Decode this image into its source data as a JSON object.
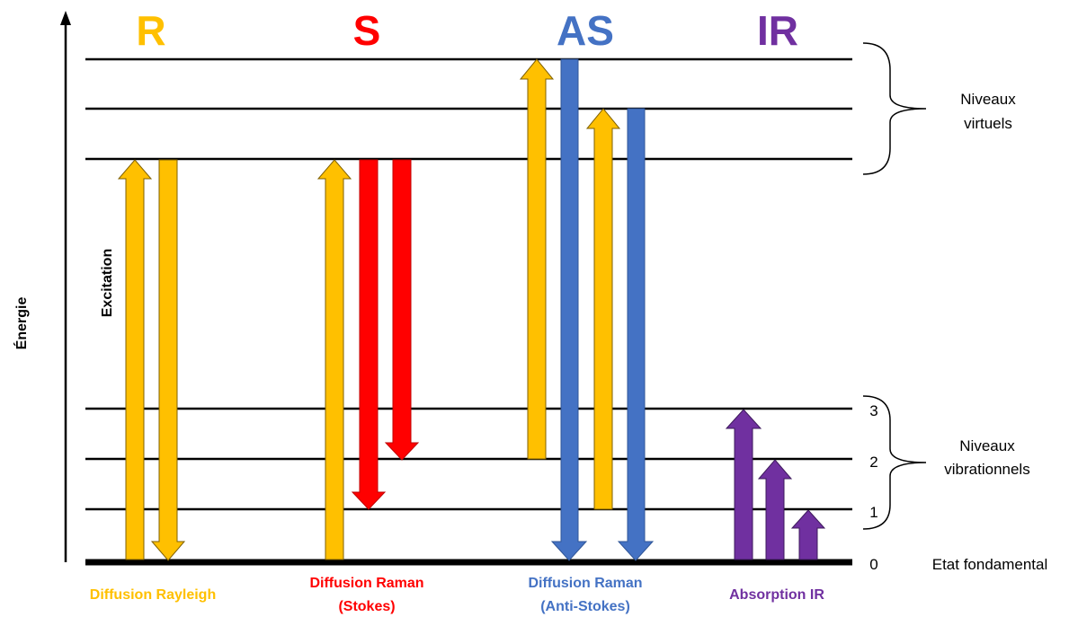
{
  "colors": {
    "rayleigh": "#FFC000",
    "stokes": "#FF0000",
    "anti_stokes": "#4472C4",
    "ir": "#7030A0",
    "line": "#000000"
  },
  "titles": {
    "rayleigh": "R",
    "stokes": "S",
    "anti_stokes": "AS",
    "ir": "IR"
  },
  "captions": {
    "rayleigh": "Diffusion Rayleigh",
    "stokes_line1": "Diffusion Raman",
    "stokes_line2": "(Stokes)",
    "anti_stokes_line1": "Diffusion Raman",
    "anti_stokes_line2": "(Anti-Stokes)",
    "ir": "Absorption IR"
  },
  "axis": {
    "label": "Énergie",
    "excitation": "Excitation"
  },
  "groups": {
    "virtual_line1": "Niveaux",
    "virtual_line2": "virtuels",
    "vibrational_line1": "Niveaux",
    "vibrational_line2": "vibrationnels",
    "ground": "Etat fondamental"
  },
  "level_numbers": [
    "0",
    "1",
    "2",
    "3"
  ],
  "icons": {
    "axis_arrow": "up-arrow-icon",
    "virtual_brace": "right-brace-icon",
    "vibrational_brace": "right-brace-icon"
  }
}
